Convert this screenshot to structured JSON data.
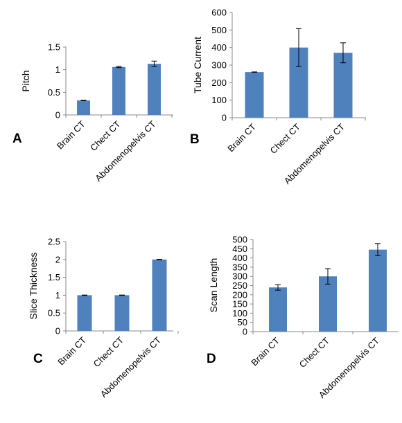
{
  "chart_data": [
    {
      "type": "bar",
      "panel_label": "A",
      "ylabel": "Pitch",
      "categories": [
        "Brain CT",
        "Chect CT",
        "Abdomenopelvis CT"
      ],
      "values": [
        0.32,
        1.06,
        1.13
      ],
      "errors": [
        0.005,
        0.015,
        0.06
      ],
      "ylim": [
        0,
        1.5
      ],
      "yticks": [
        0,
        0.5,
        1,
        1.5
      ],
      "ytick_labels": [
        "0",
        "0.5",
        "1",
        "1.5"
      ],
      "color": "#4f81bd"
    },
    {
      "type": "bar",
      "panel_label": "B",
      "ylabel": "Tube Current",
      "categories": [
        "Brain CT",
        "Chect CT",
        "Abdomenopelvis CT"
      ],
      "values": [
        260,
        400,
        370
      ],
      "errors": [
        1,
        108,
        57
      ],
      "ylim": [
        0,
        600
      ],
      "yticks": [
        0,
        100,
        200,
        300,
        400,
        500,
        600
      ],
      "ytick_labels": [
        "0",
        "100",
        "200",
        "300",
        "400",
        "500",
        "600"
      ],
      "color": "#4f81bd"
    },
    {
      "type": "bar",
      "panel_label": "C",
      "ylabel": "Slice Thickness",
      "categories": [
        "Brain CT",
        "Chect CT",
        "Abdomenopelvis CT"
      ],
      "values": [
        1,
        1,
        2
      ],
      "errors": [
        0.005,
        0.005,
        0.005
      ],
      "ylim": [
        0,
        2.5
      ],
      "yticks": [
        0,
        0.5,
        1,
        1.5,
        2,
        2.5
      ],
      "ytick_labels": [
        "0",
        "0.5",
        "1",
        "1.5",
        "2",
        "2.5"
      ],
      "color": "#4f81bd"
    },
    {
      "type": "bar",
      "panel_label": "D",
      "ylabel": "Scan Length",
      "categories": [
        "Brain CT",
        "Chect CT",
        "Abdomenopelvis CT"
      ],
      "values": [
        240,
        300,
        445
      ],
      "errors": [
        15,
        42,
        33
      ],
      "ylim": [
        0,
        500
      ],
      "yticks": [
        0,
        50,
        100,
        150,
        200,
        250,
        300,
        350,
        400,
        450,
        500
      ],
      "ytick_labels": [
        "0",
        "50",
        "100",
        "150",
        "200",
        "250",
        "300",
        "350",
        "400",
        "450",
        "500"
      ],
      "color": "#4f81bd"
    }
  ]
}
